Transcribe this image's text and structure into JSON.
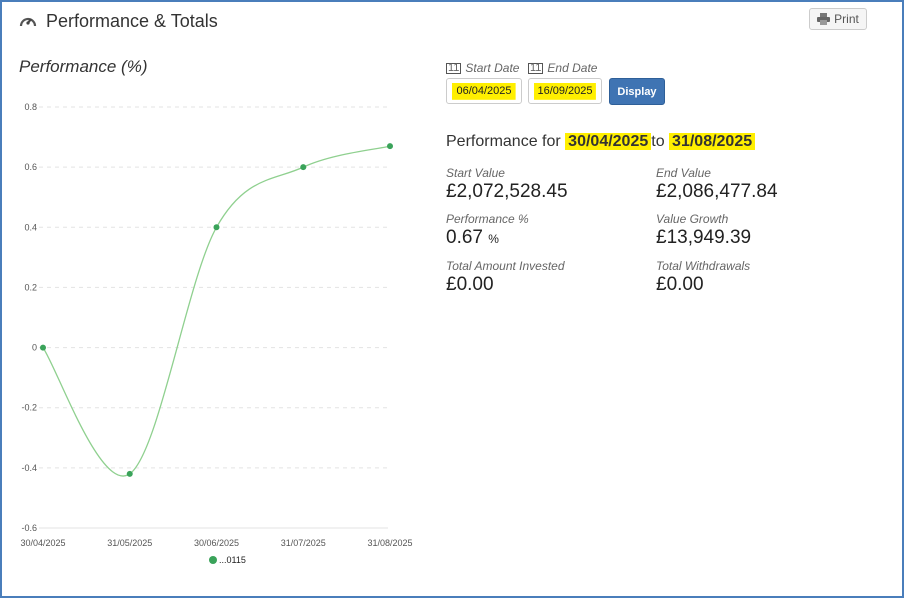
{
  "header": {
    "title": "Performance & Totals",
    "icon": "gauge-icon",
    "print_label": "Print"
  },
  "chart_title": "Performance (%)",
  "form": {
    "start_label": "Start Date",
    "end_label": "End Date",
    "start_value": "06/04/2025",
    "end_value": "16/09/2025",
    "display_label": "Display"
  },
  "summary": {
    "prefix": "Performance for",
    "from": "30/04/2025",
    "mid": "to",
    "to": "31/08/2025"
  },
  "stats": [
    {
      "label": "Start Value",
      "value": "£2,072,528.45"
    },
    {
      "label": "End Value",
      "value": "£2,086,477.84"
    },
    {
      "label": "Performance %",
      "value": "0.67",
      "unit": "%"
    },
    {
      "label": "Value Growth",
      "value": "£13,949.39"
    },
    {
      "label": "Total Amount Invested",
      "value": "£0.00"
    },
    {
      "label": "Total Withdrawals",
      "value": "£0.00"
    }
  ],
  "colors": {
    "series": "#3aa35a",
    "line": "#8fd08f",
    "button": "#3f74b3",
    "highlight": "#ffef00",
    "frame": "#4a7ebb"
  },
  "chart_data": {
    "type": "line",
    "categories": [
      "30/04/2025",
      "31/05/2025",
      "30/06/2025",
      "31/07/2025",
      "31/08/2025"
    ],
    "series": [
      {
        "name": "...0115",
        "values": [
          0,
          -0.42,
          0.4,
          0.6,
          0.67
        ]
      }
    ],
    "ylim": [
      -0.6,
      0.8
    ],
    "yticks": [
      "0.8",
      "0.6",
      "0.4",
      "0.2",
      "0",
      "-0.2",
      "-0.4",
      "-0.6"
    ],
    "grid": true,
    "legend": "bottom"
  }
}
